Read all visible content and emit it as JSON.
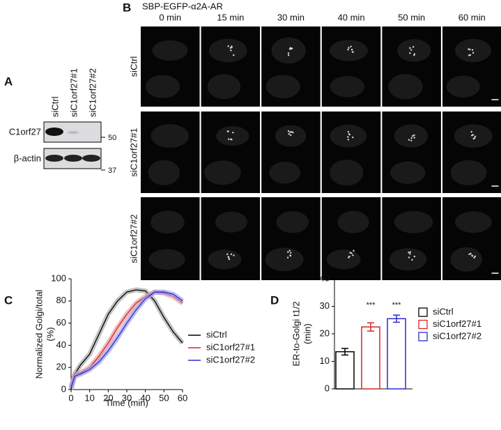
{
  "figure": {
    "panel_a": {
      "letter": "A",
      "lanes": [
        "siCtrl",
        "siC1orf27#1",
        "siC1orf27#2"
      ],
      "blots": [
        {
          "name": "C1orf27",
          "marker": "50"
        },
        {
          "name": "β-actin",
          "marker": "37"
        }
      ]
    },
    "panel_b": {
      "letter": "B",
      "title": "SBP-EGFP-α2A-AR",
      "times": [
        "0 min",
        "15 min",
        "30 min",
        "40 min",
        "50 min",
        "60 min"
      ],
      "rows": [
        "siCtrl",
        "siC1orf27#1",
        "siC1orf27#2"
      ]
    },
    "panel_c_letter": "C",
    "panel_d_letter": "D"
  },
  "chart_data": [
    {
      "type": "line",
      "xlabel": "Time (min)",
      "ylabel": [
        "Normalized Golgi/total",
        "(%)"
      ],
      "x": [
        0,
        2,
        5,
        10,
        15,
        20,
        25,
        30,
        35,
        40,
        45,
        50,
        55,
        60
      ],
      "series": [
        {
          "name": "siCtrl",
          "color": "#000000",
          "band": "#aaaaaa",
          "values": [
            0,
            14,
            22,
            32,
            50,
            68,
            80,
            88,
            90,
            89,
            80,
            65,
            52,
            42
          ]
        },
        {
          "name": "siC1orf27#1",
          "color": "#d62728",
          "band": "#e8a0a0",
          "values": [
            2,
            14,
            15,
            20,
            30,
            42,
            56,
            68,
            78,
            84,
            88,
            87,
            84,
            78
          ]
        },
        {
          "name": "siC1orf27#2",
          "color": "#2b2bd6",
          "band": "#a0a0e8",
          "values": [
            2,
            12,
            14,
            18,
            25,
            35,
            47,
            60,
            72,
            82,
            88,
            88,
            86,
            80
          ]
        }
      ],
      "xlim": [
        0,
        60
      ],
      "xticks": [
        0,
        10,
        20,
        30,
        40,
        50,
        60
      ],
      "ylim": [
        0,
        100
      ],
      "yticks": [
        0,
        20,
        40,
        60,
        80,
        100
      ]
    },
    {
      "type": "bar",
      "ylabel": [
        "ER-to-Golgi t1/2",
        "(min)"
      ],
      "categories": [
        "siCtrl",
        "siC1orf27#1",
        "siC1orf27#2"
      ],
      "values": [
        13.5,
        22.5,
        25.5
      ],
      "errors": [
        1.2,
        1.5,
        1.3
      ],
      "colors": [
        "#000000",
        "#d62728",
        "#2b2bd6"
      ],
      "annotations": [
        null,
        "***",
        "***"
      ],
      "ylim": [
        0,
        40
      ],
      "yticks": [
        0,
        10,
        20,
        30,
        40
      ]
    }
  ]
}
